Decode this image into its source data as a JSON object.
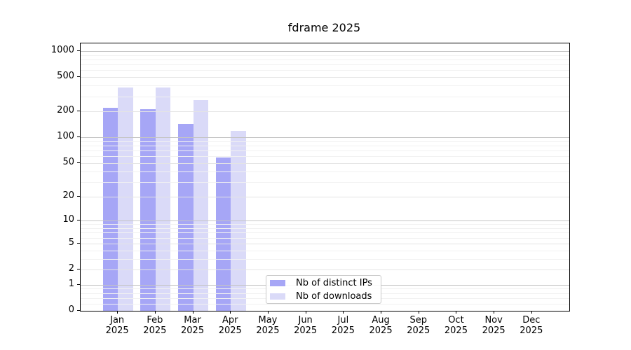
{
  "chart_data": {
    "type": "bar",
    "title": "fdrame 2025",
    "categories": [
      "Jan 2025",
      "Feb 2025",
      "Mar 2025",
      "Apr 2025",
      "May 2025",
      "Jun 2025",
      "Jul 2025",
      "Aug 2025",
      "Sep 2025",
      "Oct 2025",
      "Nov 2025",
      "Dec 2025"
    ],
    "series": [
      {
        "name": "Nb of distinct IPs",
        "color": "#a6a6f6",
        "values": [
          220,
          211,
          143,
          58,
          0,
          0,
          0,
          0,
          0,
          0,
          0,
          0
        ]
      },
      {
        "name": "Nb of downloads",
        "color": "#dadaf8",
        "values": [
          380,
          380,
          270,
          119,
          0,
          0,
          0,
          0,
          0,
          0,
          0,
          0
        ]
      }
    ],
    "xlabel": "",
    "ylabel": "",
    "yscale": "log1p",
    "yticks": [
      0,
      1,
      2,
      5,
      10,
      20,
      50,
      100,
      200,
      500,
      1000
    ],
    "minor_yticks": [
      0.2,
      0.4,
      0.6,
      0.8,
      3,
      4,
      6,
      7,
      8,
      9,
      30,
      40,
      60,
      70,
      80,
      90,
      300,
      400,
      600,
      700,
      800,
      900
    ],
    "decade_yticks": [
      1,
      10,
      100,
      1000
    ],
    "ylim": [
      0,
      1230
    ],
    "grid": true,
    "legend_position": "lower center"
  },
  "legend": {
    "items": [
      "Nb of distinct IPs",
      "Nb of downloads"
    ]
  },
  "colors": {
    "background": "#ffffff",
    "bar_distinct_ips": "#a6a6f6",
    "bar_downloads": "#dadaf8",
    "grid_decade": "#c4c4c4",
    "grid_labeled": "#e4e4e4",
    "grid_minor": "#f1f1f1",
    "spine": "#000000",
    "text": "#000000",
    "legend_border": "#c9c9c9"
  }
}
